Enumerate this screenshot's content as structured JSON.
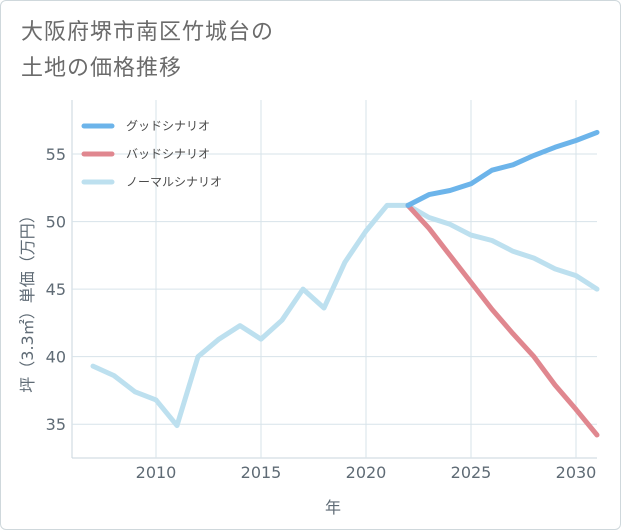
{
  "title_lines": [
    "大阪府堺市南区竹城台の",
    "土地の価格推移"
  ],
  "chart_data": {
    "type": "line",
    "xlabel": "年",
    "ylabel": "坪（3.3㎡）単価（万円）",
    "xlim": [
      2006,
      2031
    ],
    "ylim": [
      32.5,
      59
    ],
    "xticks": [
      2010,
      2015,
      2020,
      2025,
      2030
    ],
    "yticks": [
      35,
      40,
      45,
      50,
      55
    ],
    "grid": true,
    "legend_position": "top-left",
    "series": [
      {
        "name": "グッドシナリオ",
        "color": "#6cb4ea",
        "x": [
          2022,
          2023,
          2024,
          2025,
          2026,
          2027,
          2028,
          2029,
          2030,
          2031
        ],
        "y": [
          51.2,
          52.0,
          52.3,
          52.8,
          53.8,
          54.2,
          54.9,
          55.5,
          56.0,
          56.6
        ]
      },
      {
        "name": "バッドシナリオ",
        "color": "#e0878f",
        "x": [
          2022,
          2023,
          2024,
          2025,
          2026,
          2027,
          2028,
          2029,
          2030,
          2031
        ],
        "y": [
          51.2,
          49.5,
          47.5,
          45.5,
          43.5,
          41.7,
          40.0,
          37.9,
          36.1,
          34.2
        ]
      },
      {
        "name": "ノーマルシナリオ",
        "color": "#bde0ef",
        "x": [
          2007,
          2008,
          2009,
          2010,
          2011,
          2012,
          2013,
          2014,
          2015,
          2016,
          2017,
          2018,
          2019,
          2020,
          2021,
          2022,
          2023,
          2024,
          2025,
          2026,
          2027,
          2028,
          2029,
          2030,
          2031
        ],
        "y": [
          39.3,
          38.6,
          37.4,
          36.8,
          34.9,
          40.0,
          41.3,
          42.3,
          41.3,
          42.7,
          45.0,
          43.6,
          47.0,
          49.3,
          51.2,
          51.2,
          50.3,
          49.8,
          49.0,
          48.6,
          47.8,
          47.3,
          46.5,
          46.0,
          45.0
        ]
      }
    ]
  }
}
